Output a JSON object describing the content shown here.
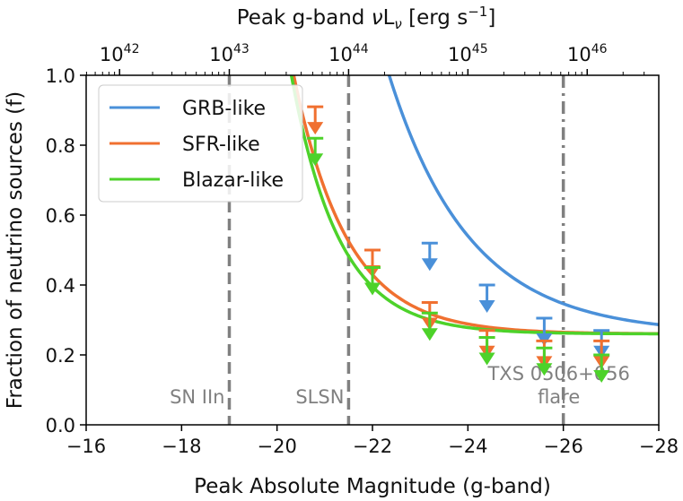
{
  "chart_data": {
    "type": "line",
    "x_axis": {
      "label": "Peak Absolute Magnitude (g-band)",
      "range": [
        -16,
        -28
      ],
      "ticks": [
        -16,
        -18,
        -20,
        -22,
        -24,
        -26,
        -28
      ],
      "tick_labels": [
        "−16",
        "−18",
        "−20",
        "−22",
        "−24",
        "−26",
        "−28"
      ]
    },
    "y_axis": {
      "label": "Fraction of neutrino sources (f)",
      "range": [
        0.0,
        1.0
      ],
      "ticks": [
        0.0,
        0.2,
        0.4,
        0.6,
        0.8,
        1.0
      ],
      "tick_labels": [
        "0.0",
        "0.2",
        "0.4",
        "0.6",
        "0.8",
        "1.0"
      ]
    },
    "top_axis": {
      "label": "Peak g-band νL_ν [erg s⁻¹]",
      "label_main": "Peak g-band ",
      "label_nu": "ν",
      "label_L": "L",
      "label_sub": "ν",
      "label_unit": " [erg s",
      "label_exp": "−1",
      "label_close": "]",
      "ticks": [
        {
          "base": "10",
          "exp": "42",
          "mag": -16.7
        },
        {
          "base": "10",
          "exp": "43",
          "mag": -19.0
        },
        {
          "base": "10",
          "exp": "44",
          "mag": -21.5
        },
        {
          "base": "10",
          "exp": "45",
          "mag": -24.0
        },
        {
          "base": "10",
          "exp": "46",
          "mag": -26.5
        }
      ]
    },
    "legend_position": "top-left",
    "series": [
      {
        "name": "GRB-like",
        "color": "#4a90d9",
        "curve": {
          "a": 0.26,
          "b": 0.74,
          "m0": -22.35,
          "scale": 1.7
        },
        "limits": [
          {
            "x": -23.2,
            "y": 0.52
          },
          {
            "x": -24.4,
            "y": 0.4
          },
          {
            "x": -25.6,
            "y": 0.305
          },
          {
            "x": -26.8,
            "y": 0.27
          }
        ]
      },
      {
        "name": "SFR-like",
        "color": "#f07030",
        "curve": {
          "a": 0.26,
          "b": 0.74,
          "m0": -20.35,
          "scale": 1.12
        },
        "limits": [
          {
            "x": -20.8,
            "y": 0.91
          },
          {
            "x": -22.0,
            "y": 0.5
          },
          {
            "x": -23.2,
            "y": 0.35
          },
          {
            "x": -24.4,
            "y": 0.27
          },
          {
            "x": -25.6,
            "y": 0.24
          },
          {
            "x": -26.8,
            "y": 0.24
          }
        ]
      },
      {
        "name": "Blazar-like",
        "color": "#4dd22a",
        "curve": {
          "a": 0.26,
          "b": 0.74,
          "m0": -20.3,
          "scale": 1.0
        },
        "limits": [
          {
            "x": -20.8,
            "y": 0.82
          },
          {
            "x": -22.0,
            "y": 0.45
          },
          {
            "x": -23.2,
            "y": 0.32
          },
          {
            "x": -24.4,
            "y": 0.25
          },
          {
            "x": -25.6,
            "y": 0.22
          },
          {
            "x": -26.8,
            "y": 0.2
          }
        ]
      }
    ],
    "reference_lines": [
      {
        "x": -19.0,
        "style": "dashed",
        "label_lines": [
          "SN IIn"
        ]
      },
      {
        "x": -21.5,
        "style": "dashed",
        "label_lines": [
          "SLSN"
        ]
      },
      {
        "x": -26.0,
        "style": "dashdot",
        "label_lines": [
          "TXS 0506+056",
          "flare"
        ]
      }
    ],
    "reference_color": "#808080"
  }
}
